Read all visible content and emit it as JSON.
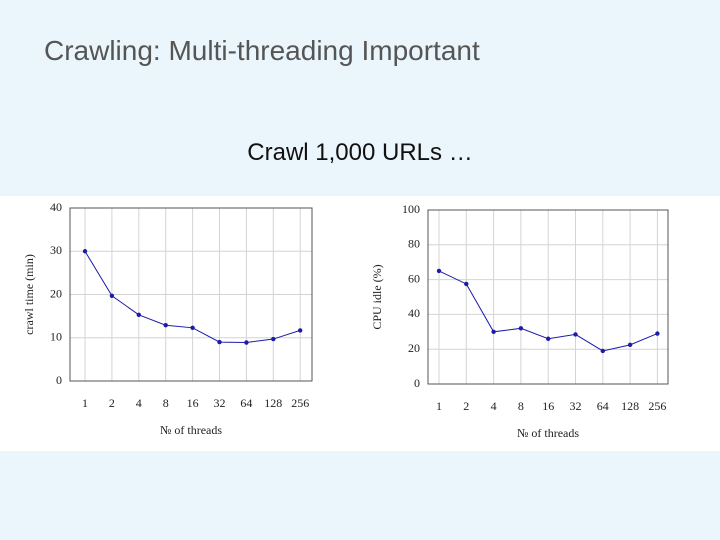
{
  "title": "Crawling: Multi-threading Important",
  "subtitle": "Crawl 1,000 URLs …",
  "chart_data": [
    {
      "type": "line",
      "ylabel": "crawl time (min)",
      "xlabel": "№ of threads",
      "categories": [
        "1",
        "2",
        "4",
        "8",
        "16",
        "32",
        "64",
        "128",
        "256"
      ],
      "series": [
        {
          "color": "#1c1ca8",
          "values": [
            30,
            19.7,
            15.3,
            12.9,
            12.3,
            9,
            8.9,
            9.7,
            11.7
          ]
        }
      ],
      "ylim": [
        0,
        40
      ],
      "yticks": [
        0,
        10,
        20,
        30,
        40
      ],
      "grid": true
    },
    {
      "type": "line",
      "ylabel": "CPU idle (%)",
      "xlabel": "№ of threads",
      "categories": [
        "1",
        "2",
        "4",
        "8",
        "16",
        "32",
        "64",
        "128",
        "256"
      ],
      "series": [
        {
          "color": "#1c1ca8",
          "values": [
            65,
            57.5,
            30,
            32,
            26,
            28.5,
            19,
            22.5,
            29
          ]
        }
      ],
      "ylim": [
        0,
        100
      ],
      "yticks": [
        0,
        20,
        40,
        60,
        80,
        100
      ],
      "grid": true
    }
  ]
}
